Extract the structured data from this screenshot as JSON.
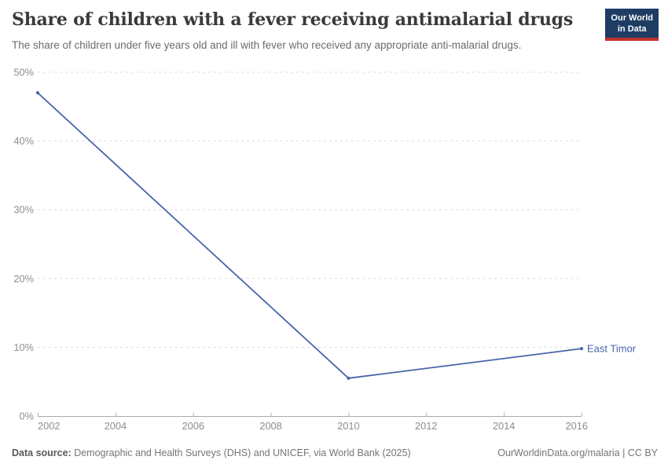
{
  "header": {
    "title": "Share of children with a fever receiving antimalarial drugs",
    "subtitle": "The share of children under five years old and ill with fever who received any appropriate anti-malarial drugs.",
    "logo_line1": "Our World",
    "logo_line2": "in Data"
  },
  "chart_data": {
    "type": "line",
    "title": "Share of children with a fever receiving antimalarial drugs",
    "series": [
      {
        "name": "East Timor",
        "x": [
          2002,
          2010,
          2016
        ],
        "values": [
          47,
          5.5,
          9.8
        ],
        "color": "#4864a8"
      }
    ],
    "xlabel": "",
    "ylabel": "",
    "xlim": [
      2002,
      2016
    ],
    "ylim": [
      0,
      50
    ],
    "xticks": [
      2002,
      2004,
      2006,
      2008,
      2010,
      2012,
      2014,
      2016
    ],
    "yticks": [
      0,
      10,
      20,
      30,
      40,
      50
    ],
    "ytick_suffix": "%",
    "grid": "horizontal-dashed",
    "legend_position": "end-of-line"
  },
  "footer": {
    "datasource_label": "Data source:",
    "datasource_text": " Demographic and Health Surveys (DHS) and UNICEF, via World Bank (2025)",
    "link_text": "OurWorldinData.org/malaria | CC BY"
  },
  "colors": {
    "series_blue": "#4864a8",
    "logo_background": "#1d3d63",
    "logo_underline": "#c0332e"
  }
}
